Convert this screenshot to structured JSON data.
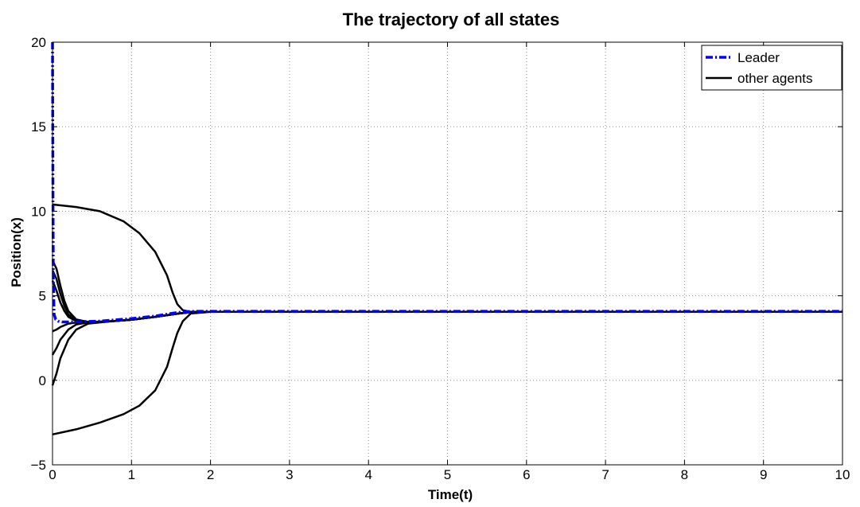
{
  "chart_data": {
    "type": "line",
    "title": "The trajectory of all states",
    "xlabel": "Time(t)",
    "ylabel": "Position(x)",
    "xlim": [
      0,
      10
    ],
    "ylim": [
      -5,
      20
    ],
    "xticks": [
      "0",
      "1",
      "2",
      "3",
      "4",
      "5",
      "6",
      "7",
      "8",
      "9",
      "10"
    ],
    "yticks": [
      "−5",
      "0",
      "5",
      "10",
      "15",
      "20"
    ],
    "grid": true,
    "legend": {
      "position": "top-right",
      "entries": [
        {
          "label": "Leader",
          "color": "#0000ff",
          "style": "dash-dot"
        },
        {
          "label": "other agents",
          "color": "#000000",
          "style": "solid"
        }
      ]
    },
    "series": [
      {
        "name": "Leader",
        "color": "#0000ff",
        "style": "dash-dot",
        "x": [
          0,
          0.005,
          0.01,
          0.02,
          0.04,
          0.07,
          0.12,
          0.2,
          0.35,
          0.6,
          1.0,
          1.3,
          1.5,
          1.65,
          1.8,
          2.0,
          3,
          4,
          5,
          6,
          7,
          8,
          9,
          10
        ],
        "y": [
          20,
          12,
          6,
          3.9,
          3.6,
          3.5,
          3.45,
          3.45,
          3.47,
          3.5,
          3.65,
          3.8,
          3.95,
          4.05,
          4.08,
          4.08,
          4.08,
          4.08,
          4.08,
          4.08,
          4.08,
          4.08,
          4.08,
          4.08
        ]
      },
      {
        "name": "other agents",
        "color": "#000000",
        "style": "solid",
        "x": [
          0,
          0.3,
          0.6,
          0.9,
          1.1,
          1.3,
          1.45,
          1.52,
          1.58,
          1.65,
          1.75,
          2.0,
          3,
          4,
          5,
          6,
          7,
          8,
          9,
          10
        ],
        "y": [
          10.4,
          10.25,
          10.0,
          9.4,
          8.7,
          7.6,
          6.2,
          5.2,
          4.5,
          4.15,
          4.05,
          4.05,
          4.05,
          4.05,
          4.05,
          4.05,
          4.05,
          4.05,
          4.05,
          4.05
        ]
      },
      {
        "name": "other agents",
        "color": "#000000",
        "style": "solid",
        "x": [
          0,
          0.3,
          0.6,
          0.9,
          1.1,
          1.3,
          1.45,
          1.52,
          1.58,
          1.65,
          1.75,
          2.0,
          3,
          4,
          5,
          6,
          7,
          8,
          9,
          10
        ],
        "y": [
          -3.2,
          -2.9,
          -2.5,
          -2.0,
          -1.5,
          -0.6,
          0.8,
          1.9,
          2.8,
          3.5,
          3.95,
          4.05,
          4.05,
          4.05,
          4.05,
          4.05,
          4.05,
          4.05,
          4.05,
          4.05
        ]
      },
      {
        "name": "other agents",
        "color": "#000000",
        "style": "solid",
        "x": [
          0,
          0.05,
          0.1,
          0.15,
          0.2,
          0.3,
          0.45,
          0.7,
          1.0,
          1.3,
          1.6,
          1.8,
          2.0,
          3,
          4,
          5,
          6,
          7,
          8,
          9,
          10
        ],
        "y": [
          7.1,
          6.6,
          5.6,
          4.7,
          4.1,
          3.6,
          3.45,
          3.48,
          3.58,
          3.75,
          3.95,
          4.05,
          4.05,
          4.05,
          4.05,
          4.05,
          4.05,
          4.05,
          4.05,
          4.05,
          4.05
        ]
      },
      {
        "name": "other agents",
        "color": "#000000",
        "style": "solid",
        "x": [
          0,
          0.05,
          0.1,
          0.15,
          0.2,
          0.3,
          0.45,
          0.7,
          1.0,
          1.3,
          1.6,
          1.8,
          2.0,
          3,
          4,
          5,
          6,
          7,
          8,
          9,
          10
        ],
        "y": [
          6.5,
          6.0,
          5.1,
          4.4,
          3.9,
          3.55,
          3.45,
          3.48,
          3.58,
          3.75,
          3.95,
          4.05,
          4.05,
          4.05,
          4.05,
          4.05,
          4.05,
          4.05,
          4.05,
          4.05,
          4.05
        ]
      },
      {
        "name": "other agents",
        "color": "#000000",
        "style": "solid",
        "x": [
          0,
          0.05,
          0.1,
          0.15,
          0.2,
          0.3,
          0.45,
          0.7,
          1.0,
          1.3,
          1.6,
          1.8,
          2.0,
          3,
          4,
          5,
          6,
          7,
          8,
          9,
          10
        ],
        "y": [
          5.9,
          5.3,
          4.6,
          4.1,
          3.75,
          3.5,
          3.44,
          3.48,
          3.58,
          3.75,
          3.95,
          4.05,
          4.05,
          4.05,
          4.05,
          4.05,
          4.05,
          4.05,
          4.05,
          4.05,
          4.05
        ]
      },
      {
        "name": "other agents",
        "color": "#000000",
        "style": "solid",
        "x": [
          0,
          0.05,
          0.1,
          0.2,
          0.3,
          0.45,
          0.7,
          1.0,
          1.3,
          1.6,
          1.8,
          2.0,
          3,
          4,
          5,
          6,
          7,
          8,
          9,
          10
        ],
        "y": [
          2.9,
          3.0,
          3.15,
          3.35,
          3.42,
          3.44,
          3.48,
          3.58,
          3.75,
          3.95,
          4.05,
          4.05,
          4.05,
          4.05,
          4.05,
          4.05,
          4.05,
          4.05,
          4.05,
          4.05
        ]
      },
      {
        "name": "other agents",
        "color": "#000000",
        "style": "solid",
        "x": [
          0,
          0.05,
          0.1,
          0.2,
          0.3,
          0.45,
          0.7,
          1.0,
          1.3,
          1.6,
          1.8,
          2.0,
          3,
          4,
          5,
          6,
          7,
          8,
          9,
          10
        ],
        "y": [
          1.5,
          1.9,
          2.4,
          3.0,
          3.3,
          3.42,
          3.48,
          3.58,
          3.75,
          3.95,
          4.05,
          4.05,
          4.05,
          4.05,
          4.05,
          4.05,
          4.05,
          4.05,
          4.05,
          4.05
        ]
      },
      {
        "name": "other agents",
        "color": "#000000",
        "style": "solid",
        "x": [
          0,
          0.05,
          0.1,
          0.2,
          0.3,
          0.45,
          0.7,
          1.0,
          1.3,
          1.6,
          1.8,
          2.0,
          3,
          4,
          5,
          6,
          7,
          8,
          9,
          10
        ],
        "y": [
          -0.3,
          0.4,
          1.3,
          2.4,
          3.0,
          3.35,
          3.47,
          3.58,
          3.75,
          3.95,
          4.05,
          4.05,
          4.05,
          4.05,
          4.05,
          4.05,
          4.05,
          4.05,
          4.05,
          4.05
        ]
      }
    ]
  }
}
